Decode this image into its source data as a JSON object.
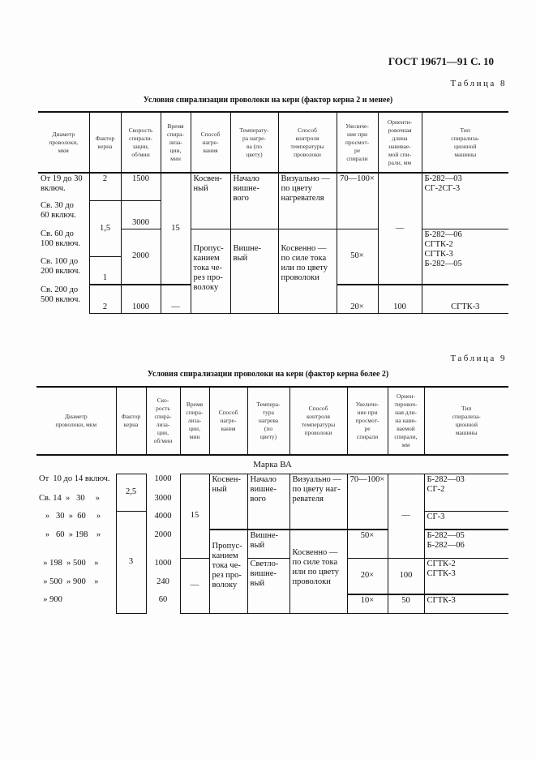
{
  "header": {
    "gost": "ГОСТ 19671—91 С. 10"
  },
  "t8": {
    "label": "Таблица 8",
    "caption": "Условия спирализации проволоки на керн (фактор керна 2 и менее)",
    "header": [
      "Диаметр\nпроволоки,\nмкм",
      "Фактор\nкерна",
      "Скорость\nспирали-\nзации,\nоб/мин",
      "Время\nспира-\nлиза-\nции,\nмин",
      "Способ\nнагре-\nвания",
      "Температу-\nра нагре-\nва (по\nцвету)",
      "Способ\nконтроля\nтемпературы\nпроволоки",
      "Увеличе-\nние при\nпросмот-\nре\nспирали",
      "Ориенти-\nровочная\nдлина\nнавивае-\nмой спи-\nрали, мм",
      "Тип\nспирализа-\nционной\nмашины"
    ],
    "rows": [
      [
        "От 19 до 30\nвключ.",
        "2",
        "1500",
        "15",
        "Косвен-\nный",
        "Начало\nвишне-\nвого",
        "Визуально —\nпо цвету\nнагревателя",
        "70—100×",
        "—",
        "Б-282—03\nСГ-2СГ-3"
      ],
      [
        "Св.  30  до\n60 включ.",
        "1,5",
        "3000"
      ],
      [
        "Св.  60  до\n100 включ.",
        "2000",
        "Пропус-\nканием\nтока че-\nрез про-\nволоку",
        "Вишне-\nвый",
        "Косвенно —\nпо силе тока\nили по цвету\nпроволоки",
        "50×",
        "Б-282—06\nСГТК-2\nСГТК-3\nБ-282—05"
      ],
      [
        "Св.  100  до\n200 включ.",
        "1"
      ],
      [
        "Св.  200  до\n500 включ.",
        "2",
        "1000",
        "—",
        "20×",
        "100",
        "СГТК-3"
      ]
    ]
  },
  "t9": {
    "label": "Таблица 9",
    "caption": "Условия спирализации проволоки на керн (фактор керна более 2)",
    "header": [
      "Диаметр\nпроволоки, мкм",
      "Фактор\nкерна",
      "Ско-\nрость\nспира-\nлиза-\nции,\nоб/мин",
      "Время\nспира-\nлиза-\nции,\nмин",
      "Способ\nнагре-\nвания",
      "Темпера-\nтура\nнагрева\n(по\nцвету)",
      "Способ\nконтроля\nтемпературы\nпроволоки",
      "Увеличе-\nние при\nпросмот-\nре\nспирали",
      "Ориен-\nтировоч-\nная дли-\nна нави-\nваемой\nспирали,\nмм",
      "Тип\nспирализа-\nционной\nмашины"
    ],
    "mark": "Марка ВА",
    "rows": [
      [
        "От  10 до 14 включ.",
        "2,5",
        "1000",
        "15",
        "Косвен-\nный",
        "Начало\nвишне-\nвого",
        "Визуально —\nпо цвету наг-\nревателя",
        "70—100×",
        "—",
        "Б-282—03\nСГ-2"
      ],
      [
        "Св. 14  »   30     »",
        "3000"
      ],
      [
        "   »   30  »  60     »",
        "3",
        "4000",
        "СГ-3"
      ],
      [
        "   »   60  » 198    »",
        "2000",
        "Пропус-\nканием\nтока че-\nрез про-\nволоку",
        "Вишне-\nвый",
        "Косвенно —\nпо силе тока\nили по цвету\nпроволоки",
        "50×",
        "Б-282—05\nБ-282—06"
      ],
      [
        "  » 198  » 500    »",
        "1000",
        "—",
        "Светло-\nвишне-\nвый",
        "20×",
        "100",
        "СГТК-2\nСГТК-3"
      ],
      [
        "  » 500  » 900    »",
        "240"
      ],
      [
        "  » 900",
        "60",
        "10×",
        "50",
        "СГТК-3"
      ]
    ]
  }
}
